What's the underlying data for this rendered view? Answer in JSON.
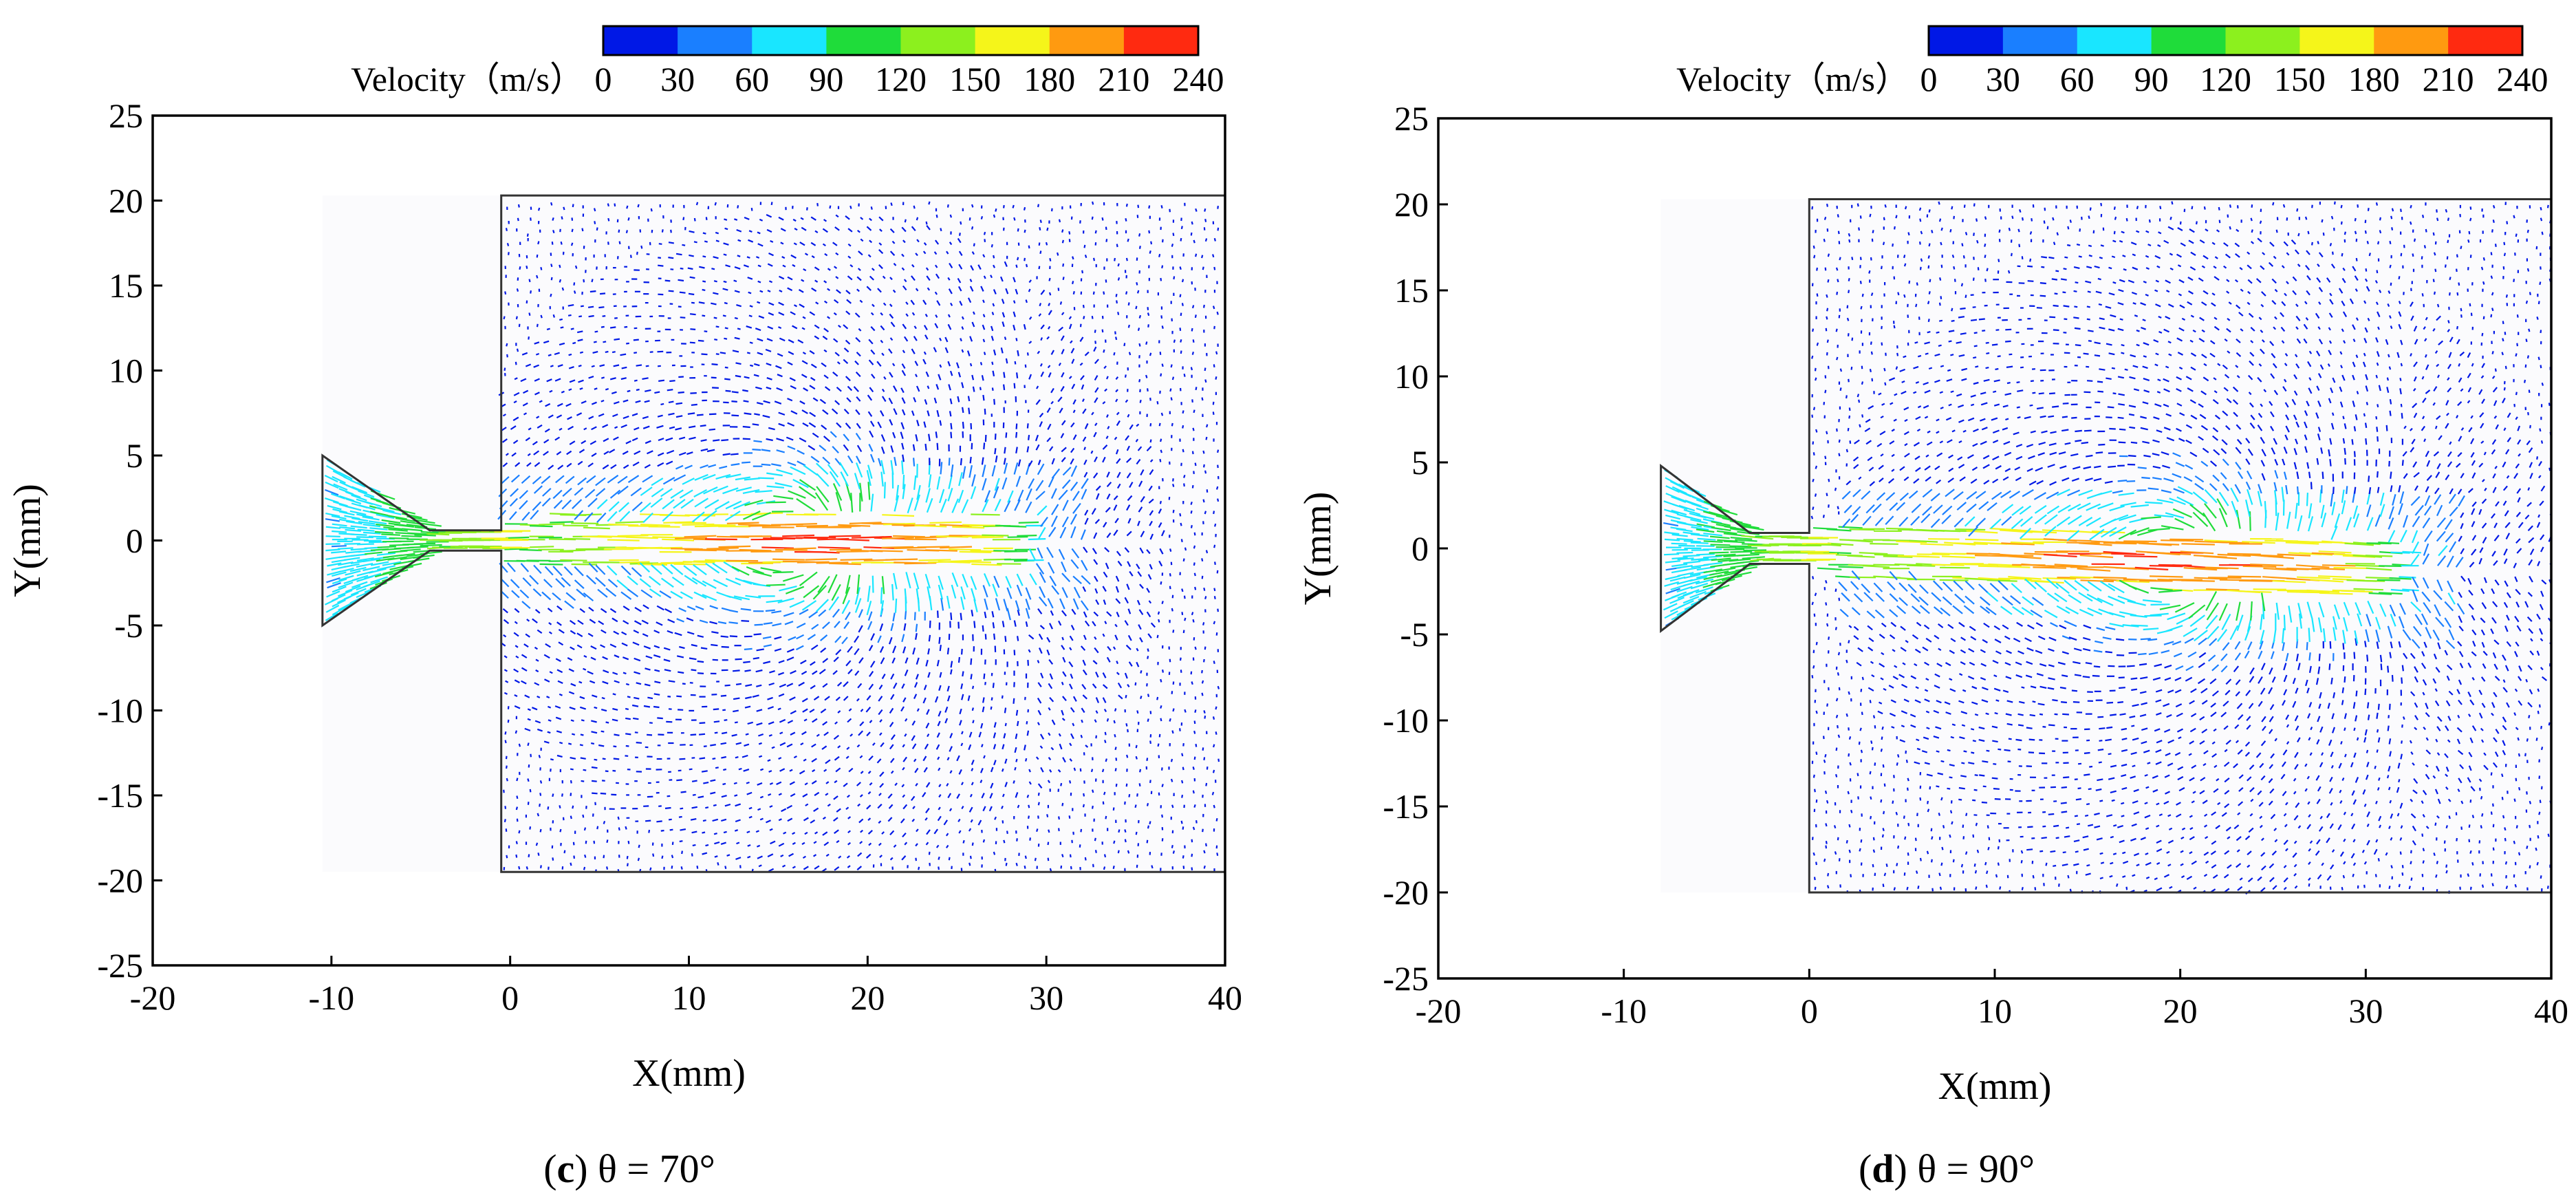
{
  "colorbar": {
    "label": "Velocity（m/s）",
    "ticks": [
      "0",
      "30",
      "60",
      "90",
      "120",
      "150",
      "180",
      "210",
      "240"
    ],
    "colors": [
      "#0018e6",
      "#1a7fff",
      "#19e6ff",
      "#1fdc3a",
      "#8cf01e",
      "#f5f51a",
      "#ff9a10",
      "#ff2a10"
    ]
  },
  "chart_data": [
    {
      "type": "vector-field",
      "title": "",
      "caption_letter": "c",
      "caption_text": " θ = 70°",
      "xlabel": "X(mm)",
      "ylabel": "Y(mm)",
      "xlim": [
        -20,
        40
      ],
      "ylim": [
        -25,
        25
      ],
      "xticks": [
        "-20",
        "-10",
        "0",
        "10",
        "20",
        "30",
        "40"
      ],
      "yticks": [
        "25",
        "20",
        "15",
        "10",
        "5",
        "0",
        "-5",
        "-10",
        "-15",
        "-20",
        "-25"
      ],
      "xtick_values": [
        -20,
        -10,
        0,
        10,
        20,
        30,
        40
      ],
      "ytick_values": [
        25,
        20,
        15,
        10,
        5,
        0,
        -5,
        -10,
        -15,
        -20,
        -25
      ],
      "nozzle_inlet_x": -10.5,
      "nozzle_half_width": 5,
      "throat_x": -4.5,
      "throat_half_width": 0.6,
      "chamber_x": [
        -0.5,
        40
      ],
      "chamber_y": [
        -19.5,
        20.3
      ],
      "jet_end_x": 29,
      "jet_tilt": 0,
      "vortex_x": 17,
      "max_velocity": 240
    },
    {
      "type": "vector-field",
      "title": "",
      "caption_letter": "d",
      "caption_text": " θ = 90°",
      "xlabel": "X(mm)",
      "ylabel": "Y(mm)",
      "xlim": [
        -20,
        40
      ],
      "ylim": [
        -25,
        25
      ],
      "xticks": [
        "-20",
        "-10",
        "0",
        "10",
        "20",
        "30",
        "40"
      ],
      "yticks": [
        "25",
        "20",
        "15",
        "10",
        "5",
        "0",
        "-5",
        "-10",
        "-15",
        "-20",
        "-25"
      ],
      "xtick_values": [
        -20,
        -10,
        0,
        10,
        20,
        30,
        40
      ],
      "ytick_values": [
        25,
        20,
        15,
        10,
        5,
        0,
        -5,
        -10,
        -15,
        -20,
        -25
      ],
      "nozzle_inlet_x": -8,
      "nozzle_half_width": 4.8,
      "throat_x": -3.2,
      "throat_half_width": 0.9,
      "chamber_x": [
        0,
        40
      ],
      "chamber_y": [
        -20,
        20.3
      ],
      "jet_end_x": 32,
      "jet_tilt": -0.04,
      "vortex_x": 21,
      "max_velocity": 240
    }
  ]
}
